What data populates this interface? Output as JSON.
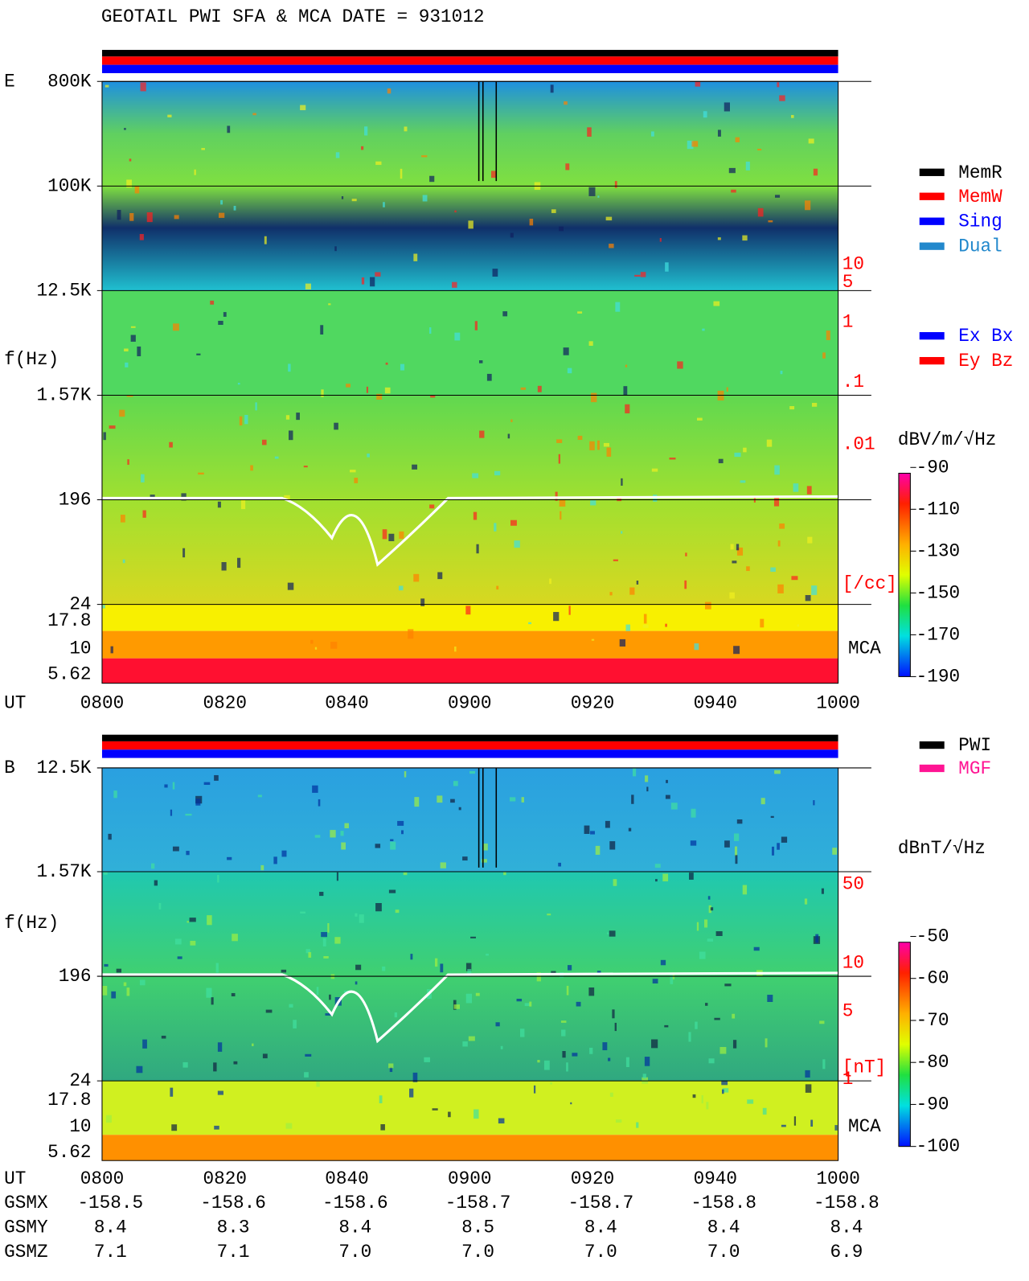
{
  "title": "GEOTAIL  PWI SFA & MCA   DATE = 931012",
  "panels": [
    {
      "label": "E",
      "y_title": "f(Hz)",
      "x_title": "UT",
      "yticks": [
        "800K",
        "100K",
        "12.5K",
        "1.57K",
        "196",
        "24",
        "17.8",
        "10",
        "5.62"
      ],
      "right_labels": [
        "10",
        "5",
        "1",
        ".1",
        ".01",
        "[/cc]"
      ],
      "mca": "MCA",
      "xticks": [
        "0800",
        "0820",
        "0840",
        "0900",
        "0920",
        "0940",
        "1000"
      ],
      "legend": [
        {
          "name": "MemR",
          "color": "#000000"
        },
        {
          "name": "MemW",
          "color": "#ff0000"
        },
        {
          "name": "Sing",
          "color": "#0000ff"
        },
        {
          "name": "Dual",
          "color": "#2288cc"
        },
        {
          "name": "Ex Bx",
          "color": "#0000ff"
        },
        {
          "name": "Ey Bz",
          "color": "#ff0000"
        }
      ],
      "colorbar": {
        "label": "dBV/m/√Hz",
        "ticks": [
          -90,
          -110,
          -130,
          -150,
          -170,
          -190
        ]
      }
    },
    {
      "label": "B",
      "y_title": "f(Hz)",
      "x_title": "UT",
      "yticks": [
        "12.5K",
        "1.57K",
        "196",
        "24",
        "17.8",
        "10",
        "5.62"
      ],
      "right_labels": [
        "50",
        "10",
        "5",
        "1",
        "[nT]"
      ],
      "mca": "MCA",
      "xticks": [
        "0800",
        "0820",
        "0840",
        "0900",
        "0920",
        "0940",
        "1000"
      ],
      "legend": [
        {
          "name": "PWI",
          "color": "#000000"
        },
        {
          "name": "MGF",
          "color": "#ff1493"
        }
      ],
      "colorbar": {
        "label": "dBnT/√Hz",
        "ticks": [
          -50,
          -60,
          -70,
          -80,
          -90,
          -100
        ]
      }
    }
  ],
  "orbit": [
    {
      "label": "GSMX",
      "values": [
        "-158.5",
        "-158.6",
        "-158.6",
        "-158.7",
        "-158.7",
        "-158.8",
        "-158.8"
      ]
    },
    {
      "label": "GSMY",
      "values": [
        "8.4",
        "8.3",
        "8.4",
        "8.5",
        "8.4",
        "8.4",
        "8.4"
      ]
    },
    {
      "label": "GSMZ",
      "values": [
        "7.1",
        "7.1",
        "7.0",
        "7.0",
        "7.0",
        "7.0",
        "6.9"
      ]
    }
  ]
}
